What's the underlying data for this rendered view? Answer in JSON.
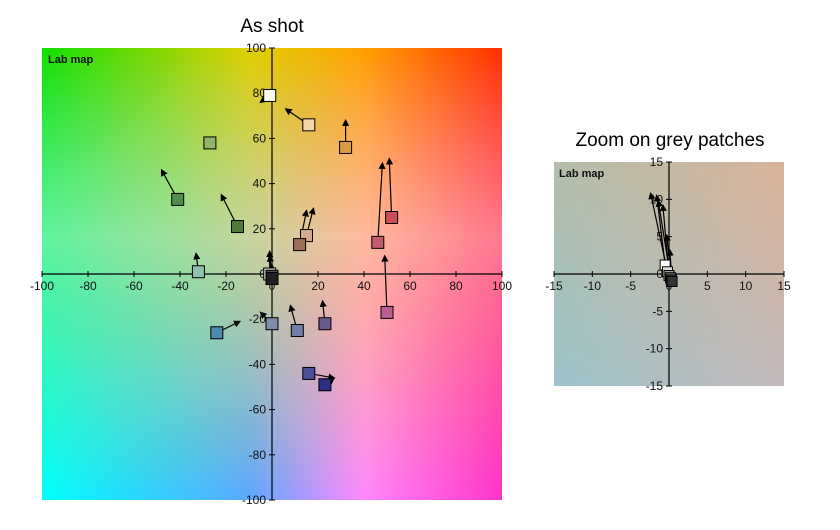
{
  "chart_data": [
    {
      "type": "scatter",
      "title": "As shot",
      "map_label": "Lab map",
      "xlim": [
        -100,
        100
      ],
      "ylim": [
        -100,
        100
      ],
      "xticks": [
        -100,
        -80,
        -60,
        -40,
        -20,
        0,
        20,
        40,
        60,
        80,
        100
      ],
      "yticks": [
        -100,
        -80,
        -60,
        -40,
        -20,
        0,
        20,
        40,
        60,
        80,
        100
      ],
      "xtick_labels": [
        "-100",
        "-80",
        "-60",
        "-40",
        "-20",
        "0",
        "20",
        "40",
        "60",
        "80",
        "100"
      ],
      "ytick_labels": [
        "-100",
        "-80",
        "-60",
        "-40",
        "-20",
        "0",
        "20",
        "40",
        "60",
        "80",
        "100"
      ],
      "grid": false,
      "points": [
        {
          "x": -1,
          "y": 79,
          "ex": -5,
          "ey": 76,
          "color": "#fdfbec"
        },
        {
          "x": 16,
          "y": 66,
          "ex": 6,
          "ey": 73,
          "color": "#f5d7a3"
        },
        {
          "x": 32,
          "y": 56,
          "ex": 32,
          "ey": 68,
          "color": "#dc9a47"
        },
        {
          "x": -27,
          "y": 58,
          "ex": -27,
          "ey": 58,
          "color": "#8fb56b"
        },
        {
          "x": -41,
          "y": 33,
          "ex": -48,
          "ey": 46,
          "color": "#4e8d4c"
        },
        {
          "x": -15,
          "y": 21,
          "ex": -22,
          "ey": 35,
          "color": "#4f7a3c"
        },
        {
          "x": 52,
          "y": 25,
          "ex": 51,
          "ey": 51,
          "color": "#cb4d5a"
        },
        {
          "x": 46,
          "y": 14,
          "ex": 48,
          "ey": 49,
          "color": "#c45e6e"
        },
        {
          "x": 15,
          "y": 17,
          "ex": 18,
          "ey": 29,
          "color": "#d6a98a"
        },
        {
          "x": 12,
          "y": 13,
          "ex": 15,
          "ey": 28,
          "color": "#a06d58"
        },
        {
          "x": -32,
          "y": 1,
          "ex": -33,
          "ey": 9,
          "color": "#8ec1ae"
        },
        {
          "x": -1,
          "y": 0,
          "ex": -1,
          "ey": 10,
          "color": "#cfcfcf"
        },
        {
          "x": 0,
          "y": -1,
          "ex": -1,
          "ey": 8,
          "color": "#505050"
        },
        {
          "x": 0,
          "y": -2,
          "ex": 0,
          "ey": 4,
          "color": "#202020"
        },
        {
          "x": -24,
          "y": -26,
          "ex": -14,
          "ey": -21,
          "color": "#4f89b0"
        },
        {
          "x": 0,
          "y": -22,
          "ex": -5,
          "ey": -17,
          "color": "#7e8ea8"
        },
        {
          "x": 11,
          "y": -25,
          "ex": 8,
          "ey": -14,
          "color": "#707ea8"
        },
        {
          "x": 23,
          "y": -22,
          "ex": 22,
          "ey": -12,
          "color": "#6b5b8d"
        },
        {
          "x": 50,
          "y": -17,
          "ex": 49,
          "ey": 8,
          "color": "#bd5f94"
        },
        {
          "x": 16,
          "y": -44,
          "ex": 27,
          "ey": -46,
          "color": "#4b4f9b"
        },
        {
          "x": 23,
          "y": -49,
          "ex": 27,
          "ey": -46,
          "color": "#2c2e84"
        }
      ]
    },
    {
      "type": "scatter",
      "title": "Zoom on grey patches",
      "map_label": "Lab map",
      "xlim": [
        -15,
        15
      ],
      "ylim": [
        -15,
        15
      ],
      "xticks": [
        -15,
        -10,
        -5,
        0,
        5,
        10,
        15
      ],
      "yticks": [
        -15,
        -10,
        -5,
        0,
        5,
        10,
        15
      ],
      "xtick_labels": [
        "-15",
        "-10",
        "-5",
        "0",
        "5",
        "10",
        "15"
      ],
      "ytick_labels": [
        "-15",
        "-10",
        "-5",
        "0",
        "5",
        "10",
        "15"
      ],
      "grid": false,
      "points": [
        {
          "x": -0.5,
          "y": 1.2,
          "ex": -1.6,
          "ey": 10.5,
          "color": "#ffffff"
        },
        {
          "x": -0.2,
          "y": 0.3,
          "ex": -2.4,
          "ey": 10.8,
          "color": "#dddddd"
        },
        {
          "x": 0,
          "y": -0.2,
          "ex": -0.8,
          "ey": 9.2,
          "color": "#9a9a9a"
        },
        {
          "x": 0.2,
          "y": -0.5,
          "ex": -1.4,
          "ey": 9.8,
          "color": "#6a6a6a"
        },
        {
          "x": 0.3,
          "y": -0.8,
          "ex": -0.3,
          "ey": 5.2,
          "color": "#4a4a4a"
        },
        {
          "x": 0.4,
          "y": -1.0,
          "ex": 0.1,
          "ey": 3.2,
          "color": "#333333"
        }
      ]
    }
  ]
}
